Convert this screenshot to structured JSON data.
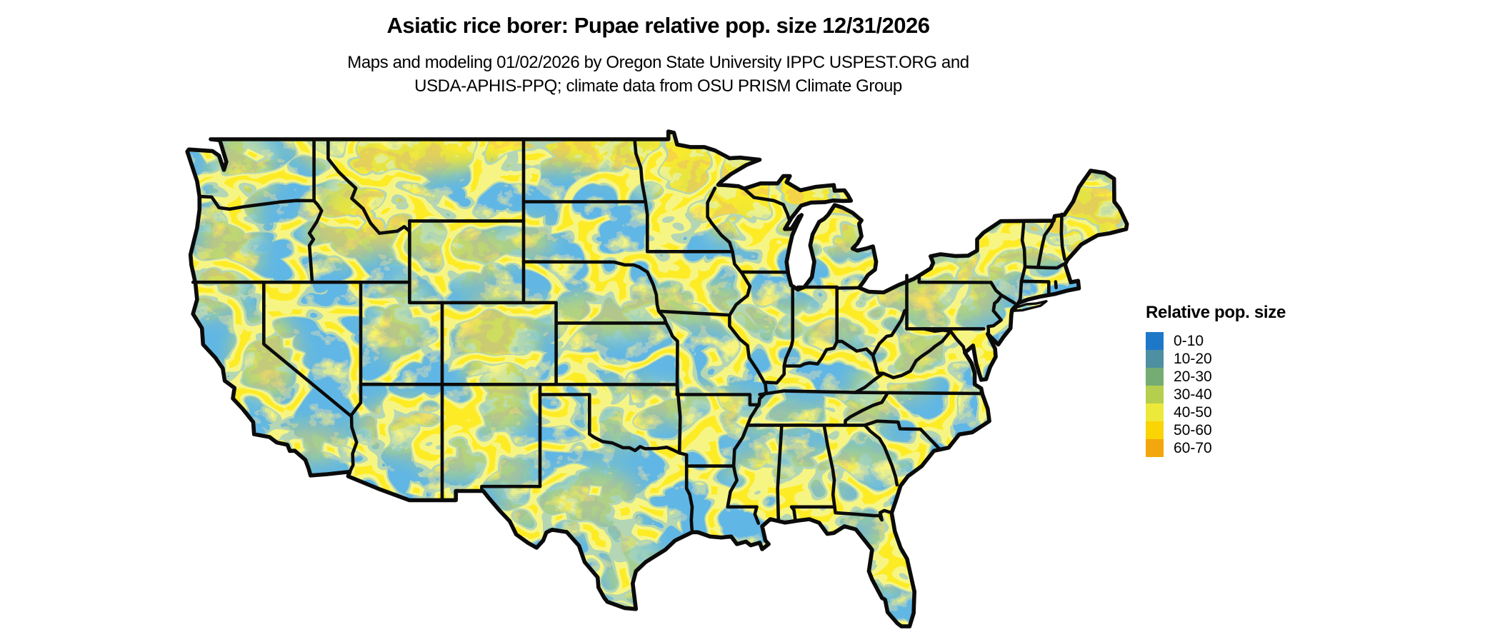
{
  "header": {
    "title": "Asiatic rice borer: Pupae relative pop. size 12/31/2026",
    "subtitle_line1": "Maps and modeling 01/02/2026 by Oregon State University IPPC USPEST.ORG and",
    "subtitle_line2": "USDA-APHIS-PPQ; climate data from OSU PRISM Climate Group"
  },
  "legend": {
    "title": "Relative pop. size",
    "items": [
      {
        "label": "0-10",
        "color": "#1E78C8"
      },
      {
        "label": "10-20",
        "color": "#4E90A1"
      },
      {
        "label": "20-30",
        "color": "#74AC74"
      },
      {
        "label": "30-40",
        "color": "#B5CE4E"
      },
      {
        "label": "40-50",
        "color": "#EDE93B"
      },
      {
        "label": "50-60",
        "color": "#FBD405"
      },
      {
        "label": "60-70",
        "color": "#F2A70E"
      }
    ]
  },
  "map": {
    "area_shown": "Contiguous United States",
    "background_color": "#FFFFFF",
    "state_border_color": "#0B0B0B",
    "dominant_fill_color": "#1E78C8"
  }
}
